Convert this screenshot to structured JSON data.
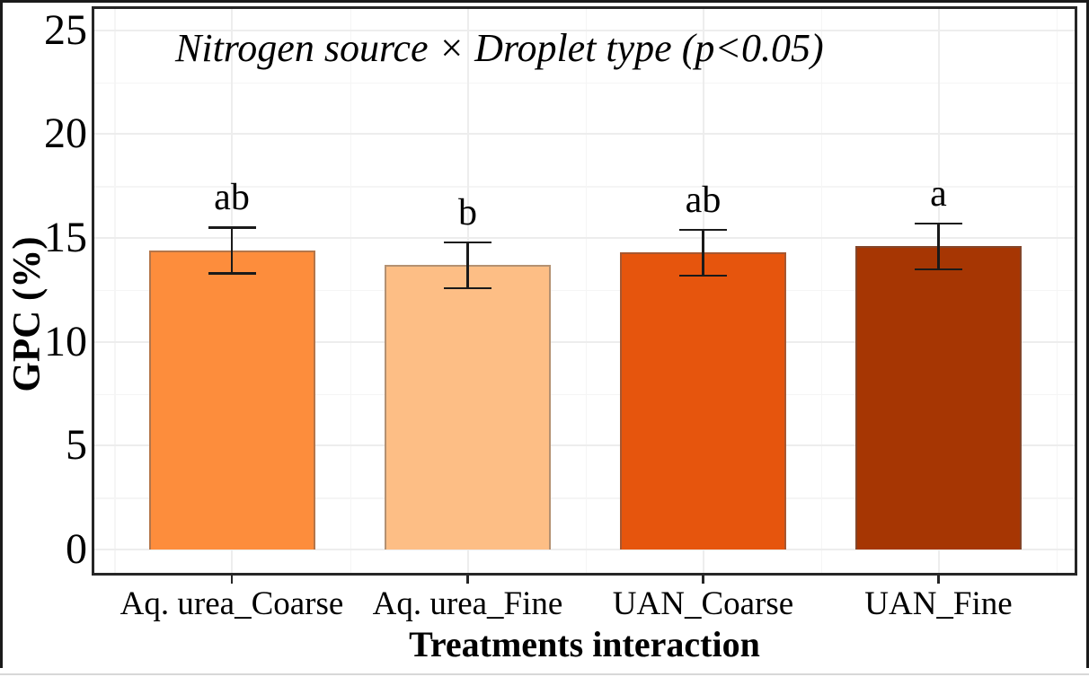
{
  "chart_data": {
    "type": "bar",
    "title": "Nitrogen source × Droplet type (p<0.05)",
    "xlabel": "Treatments interaction",
    "ylabel": "GPC (%)",
    "categories": [
      "Aq. urea_Coarse",
      "Aq. urea_Fine",
      "UAN_Coarse",
      "UAN_Fine"
    ],
    "values": [
      14.4,
      13.7,
      14.3,
      14.6
    ],
    "error_bars": [
      1.1,
      1.1,
      1.1,
      1.1
    ],
    "sig_letters": [
      "ab",
      "b",
      "ab",
      "a"
    ],
    "bar_colors": [
      "#FD8D3C",
      "#FDBE85",
      "#E6550D",
      "#A63603"
    ],
    "ylim": [
      0,
      25
    ],
    "yticks": [
      0,
      5,
      10,
      15,
      20,
      25
    ],
    "yticks_minor": [
      2.5,
      7.5,
      12.5,
      17.5,
      22.5
    ],
    "grid": {
      "show_major": true,
      "show_minor": true,
      "major_color": "#ededed",
      "minor_color": "#f5f5f5"
    },
    "legend": "none",
    "panel_border_color": "#262626",
    "error_bar_color": "#1a1a1a"
  }
}
